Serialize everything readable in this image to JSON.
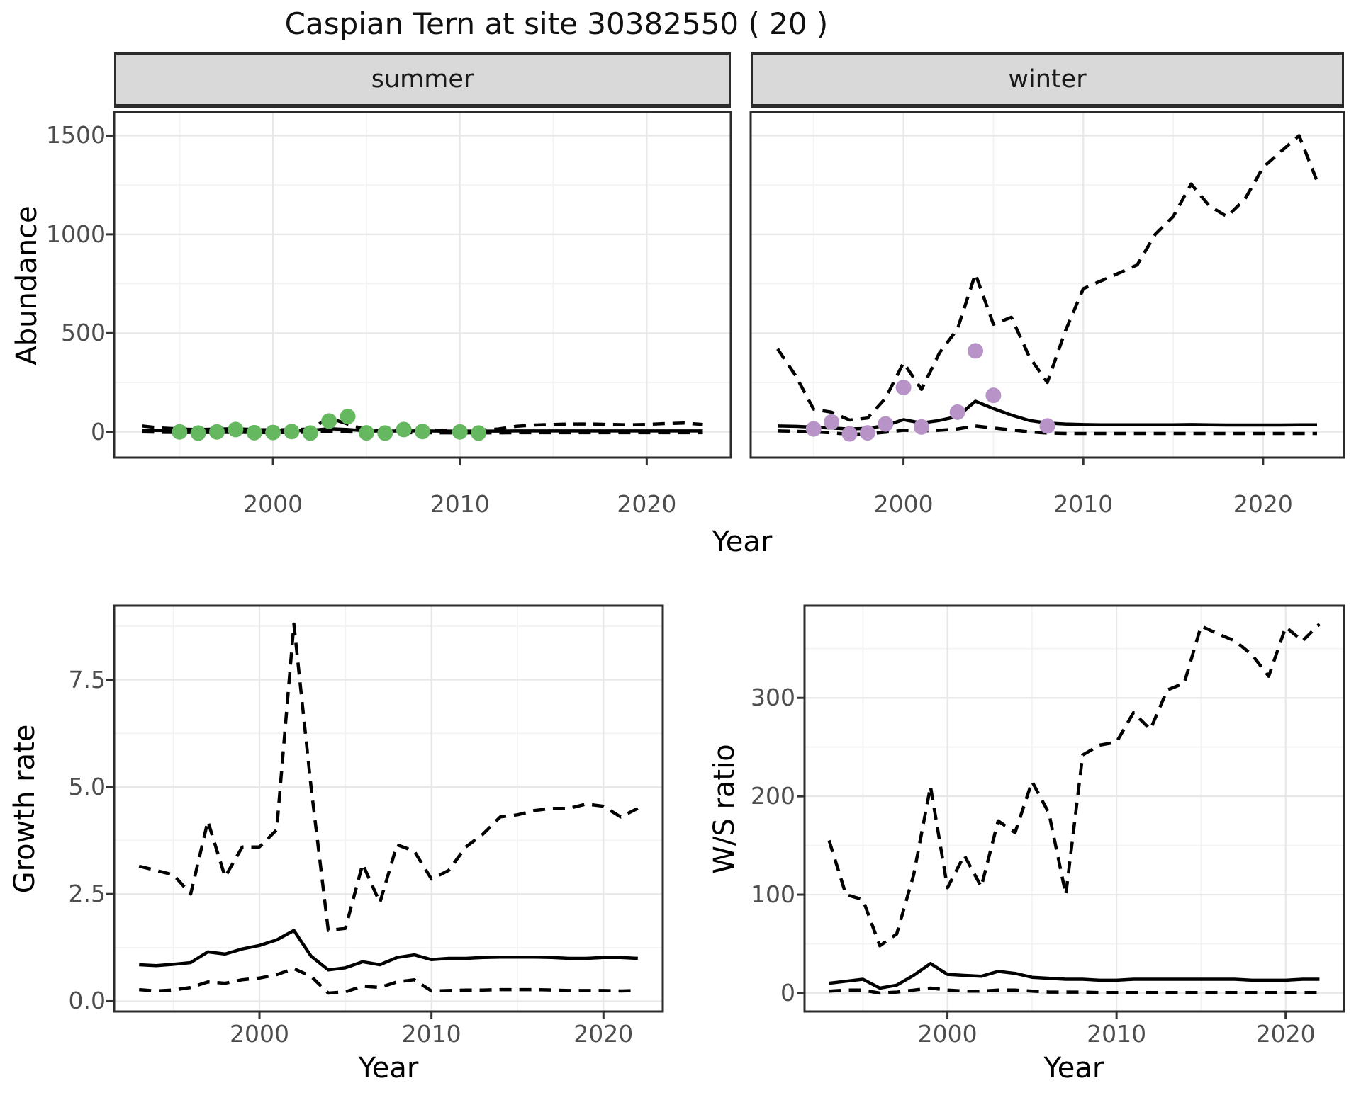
{
  "title": "Caspian Tern at site 30382550 ( 20 )",
  "colors": {
    "summer_points": "#65b85f",
    "winter_points": "#b793c8",
    "line": "#000000",
    "panel_border": "#2b2b2b",
    "grid_major": "#e8e8e8",
    "grid_minor": "#f3f3f3",
    "strip_bg": "#d9d9d9",
    "tick_text": "#4d4d4d"
  },
  "chart_data": [
    {
      "id": "abundance-summer",
      "type": "line",
      "facet": "summer",
      "xlabel": "Year",
      "ylabel": "Abundance",
      "xlim": [
        1991.5,
        2024.5
      ],
      "ylim": [
        -130,
        1620
      ],
      "xticks": [
        2000,
        2010,
        2020
      ],
      "xtick_labels": [
        "2000",
        "2010",
        "2020"
      ],
      "xminor": [
        1995,
        2005,
        2015
      ],
      "yticks": [
        0,
        500,
        1000,
        1500
      ],
      "ytick_labels": [
        "0",
        "500",
        "1000",
        "1500"
      ],
      "yminor": [
        250,
        750,
        1250
      ],
      "grid": true,
      "legend": "none",
      "series": [
        {
          "name": "upper-ci",
          "style": "dashed",
          "x": [
            1993,
            1994,
            1995,
            1996,
            1997,
            1998,
            1999,
            2000,
            2001,
            2002,
            2003,
            2004,
            2005,
            2006,
            2007,
            2008,
            2009,
            2010,
            2011,
            2012,
            2013,
            2014,
            2015,
            2016,
            2017,
            2018,
            2019,
            2020,
            2021,
            2022,
            2023
          ],
          "y": [
            30,
            20,
            15,
            12,
            14,
            16,
            12,
            10,
            12,
            14,
            70,
            40,
            10,
            8,
            10,
            12,
            8,
            8,
            8,
            14,
            28,
            35,
            38,
            40,
            40,
            38,
            36,
            38,
            42,
            45,
            38
          ]
        },
        {
          "name": "median",
          "style": "solid",
          "x": [
            1993,
            1994,
            1995,
            1996,
            1997,
            1998,
            1999,
            2000,
            2001,
            2002,
            2003,
            2004,
            2005,
            2006,
            2007,
            2008,
            2009,
            2010,
            2011,
            2012,
            2013,
            2014,
            2015,
            2016,
            2017,
            2018,
            2019,
            2020,
            2021,
            2022,
            2023
          ],
          "y": [
            8,
            7,
            6,
            6,
            6,
            7,
            6,
            5,
            6,
            7,
            16,
            12,
            5,
            4,
            5,
            5,
            4,
            4,
            4,
            4,
            5,
            5,
            5,
            5,
            5,
            5,
            5,
            5,
            5,
            5,
            5
          ]
        },
        {
          "name": "lower-ci",
          "style": "dashed",
          "x": [
            1993,
            1994,
            1995,
            1996,
            1997,
            1998,
            1999,
            2000,
            2001,
            2002,
            2003,
            2004,
            2005,
            2006,
            2007,
            2008,
            2009,
            2010,
            2011,
            2012,
            2013,
            2014,
            2015,
            2016,
            2017,
            2018,
            2019,
            2020,
            2021,
            2022,
            2023
          ],
          "y": [
            0,
            -2,
            -3,
            -3,
            -3,
            -2,
            -3,
            -4,
            -3,
            -2,
            2,
            0,
            -4,
            -5,
            -4,
            -4,
            -5,
            -5,
            -5,
            -5,
            -4,
            -4,
            -4,
            -4,
            -4,
            -4,
            -4,
            -4,
            -4,
            -4,
            -4
          ]
        },
        {
          "name": "observed-counts",
          "style": "points",
          "color": "#65b85f",
          "x": [
            1995,
            1996,
            1997,
            1998,
            1999,
            2000,
            2001,
            2002,
            2003,
            2004,
            2005,
            2006,
            2007,
            2008,
            2010,
            2011
          ],
          "y": [
            0,
            -6,
            0,
            12,
            -4,
            -3,
            2,
            -6,
            55,
            78,
            -5,
            -6,
            12,
            2,
            0,
            -6
          ]
        }
      ]
    },
    {
      "id": "abundance-winter",
      "type": "line",
      "facet": "winter",
      "xlabel": "Year",
      "ylabel": "Abundance",
      "xlim": [
        1991.5,
        2024.5
      ],
      "ylim": [
        -130,
        1620
      ],
      "xticks": [
        2000,
        2010,
        2020
      ],
      "xtick_labels": [
        "2000",
        "2010",
        "2020"
      ],
      "xminor": [
        1995,
        2005,
        2015
      ],
      "yticks": [
        0,
        500,
        1000,
        1500
      ],
      "ytick_labels": [
        "0",
        "500",
        "1000",
        "1500"
      ],
      "yminor": [
        250,
        750,
        1250
      ],
      "grid": true,
      "legend": "none",
      "series": [
        {
          "name": "upper-ci",
          "style": "dashed",
          "x": [
            1993,
            1994,
            1995,
            1996,
            1997,
            1998,
            1999,
            2000,
            2001,
            2002,
            2003,
            2004,
            2005,
            2006,
            2007,
            2008,
            2009,
            2010,
            2011,
            2012,
            2013,
            2014,
            2015,
            2016,
            2017,
            2018,
            2019,
            2020,
            2021,
            2022,
            2023
          ],
          "y": [
            420,
            285,
            115,
            100,
            60,
            70,
            170,
            350,
            215,
            400,
            520,
            800,
            545,
            580,
            380,
            250,
            510,
            725,
            765,
            805,
            845,
            1000,
            1090,
            1255,
            1145,
            1090,
            1180,
            1340,
            1420,
            1500,
            1270
          ]
        },
        {
          "name": "median",
          "style": "solid",
          "x": [
            1993,
            1994,
            1995,
            1996,
            1997,
            1998,
            1999,
            2000,
            2001,
            2002,
            2003,
            2004,
            2005,
            2006,
            2007,
            2008,
            2009,
            2010,
            2011,
            2012,
            2013,
            2014,
            2015,
            2016,
            2017,
            2018,
            2019,
            2020,
            2021,
            2022,
            2023
          ],
          "y": [
            30,
            28,
            24,
            20,
            15,
            18,
            32,
            62,
            45,
            58,
            78,
            155,
            118,
            85,
            58,
            45,
            40,
            37,
            36,
            36,
            36,
            36,
            36,
            37,
            36,
            35,
            35,
            35,
            35,
            36,
            36
          ]
        },
        {
          "name": "lower-ci",
          "style": "dashed",
          "x": [
            1993,
            1994,
            1995,
            1996,
            1997,
            1998,
            1999,
            2000,
            2001,
            2002,
            2003,
            2004,
            2005,
            2006,
            2007,
            2008,
            2009,
            2010,
            2011,
            2012,
            2013,
            2014,
            2015,
            2016,
            2017,
            2018,
            2019,
            2020,
            2021,
            2022,
            2023
          ],
          "y": [
            5,
            3,
            0,
            -5,
            -12,
            -10,
            -2,
            8,
            4,
            8,
            15,
            30,
            20,
            10,
            0,
            -6,
            -8,
            -8,
            -8,
            -8,
            -8,
            -8,
            -8,
            -8,
            -8,
            -8,
            -8,
            -8,
            -8,
            -8,
            -8
          ]
        },
        {
          "name": "observed-counts",
          "style": "points",
          "color": "#b793c8",
          "x": [
            1995,
            1996,
            1997,
            1998,
            1999,
            2000,
            2001,
            2003,
            2004,
            2005,
            2008
          ],
          "y": [
            15,
            50,
            -10,
            -5,
            40,
            225,
            25,
            100,
            410,
            185,
            30
          ]
        }
      ]
    },
    {
      "id": "growth-rate",
      "type": "line",
      "facet": "",
      "xlabel": "Year",
      "ylabel": "Growth rate",
      "xlim": [
        1991.55,
        2023.45
      ],
      "ylim": [
        -0.24,
        9.23
      ],
      "xticks": [
        2000,
        2010,
        2020
      ],
      "xtick_labels": [
        "2000",
        "2010",
        "2020"
      ],
      "xminor": [
        1995,
        2005,
        2015
      ],
      "yticks": [
        0.0,
        2.5,
        5.0,
        7.5
      ],
      "ytick_labels": [
        "0.0",
        "2.5",
        "5.0",
        "7.5"
      ],
      "yminor": [
        1.25,
        3.75,
        6.25,
        8.75
      ],
      "grid": true,
      "legend": "none",
      "series": [
        {
          "name": "upper-ci",
          "style": "dashed",
          "x": [
            1993,
            1994,
            1995,
            1996,
            1997,
            1998,
            1999,
            2000,
            2001,
            2002,
            2003,
            2004,
            2005,
            2006,
            2007,
            2008,
            2009,
            2010,
            2011,
            2012,
            2013,
            2014,
            2015,
            2016,
            2017,
            2018,
            2019,
            2020,
            2021,
            2022
          ],
          "y": [
            3.15,
            3.05,
            2.95,
            2.5,
            4.2,
            2.9,
            3.6,
            3.6,
            4.0,
            8.8,
            5.0,
            1.65,
            1.7,
            3.2,
            2.3,
            3.65,
            3.5,
            2.85,
            3.05,
            3.6,
            3.9,
            4.3,
            4.35,
            4.45,
            4.5,
            4.5,
            4.6,
            4.55,
            4.3,
            4.5
          ]
        },
        {
          "name": "median",
          "style": "solid",
          "x": [
            1993,
            1994,
            1995,
            1996,
            1997,
            1998,
            1999,
            2000,
            2001,
            2002,
            2003,
            2004,
            2005,
            2006,
            2007,
            2008,
            2009,
            2010,
            2011,
            2012,
            2013,
            2014,
            2015,
            2016,
            2017,
            2018,
            2019,
            2020,
            2021,
            2022
          ],
          "y": [
            0.85,
            0.83,
            0.86,
            0.9,
            1.15,
            1.1,
            1.22,
            1.3,
            1.43,
            1.65,
            1.05,
            0.73,
            0.78,
            0.92,
            0.85,
            1.02,
            1.08,
            0.97,
            1.0,
            1.0,
            1.02,
            1.03,
            1.03,
            1.03,
            1.02,
            1.0,
            1.0,
            1.02,
            1.02,
            1.0
          ]
        },
        {
          "name": "lower-ci",
          "style": "dashed",
          "x": [
            1993,
            1994,
            1995,
            1996,
            1997,
            1998,
            1999,
            2000,
            2001,
            2002,
            2003,
            2004,
            2005,
            2006,
            2007,
            2008,
            2009,
            2010,
            2011,
            2012,
            2013,
            2014,
            2015,
            2016,
            2017,
            2018,
            2019,
            2020,
            2021,
            2022
          ],
          "y": [
            0.27,
            0.24,
            0.26,
            0.32,
            0.45,
            0.42,
            0.5,
            0.54,
            0.62,
            0.76,
            0.58,
            0.19,
            0.22,
            0.35,
            0.32,
            0.45,
            0.5,
            0.24,
            0.25,
            0.26,
            0.26,
            0.27,
            0.27,
            0.27,
            0.26,
            0.25,
            0.25,
            0.25,
            0.24,
            0.25
          ]
        }
      ]
    },
    {
      "id": "ws-ratio",
      "type": "line",
      "facet": "",
      "xlabel": "Year",
      "ylabel": "W/S ratio",
      "xlim": [
        1991.55,
        2023.45
      ],
      "ylim": [
        -18.75,
        393.75
      ],
      "xticks": [
        2000,
        2010,
        2020
      ],
      "xtick_labels": [
        "2000",
        "2010",
        "2020"
      ],
      "xminor": [
        1995,
        2005,
        2015
      ],
      "yticks": [
        0,
        100,
        200,
        300
      ],
      "ytick_labels": [
        "0",
        "100",
        "200",
        "300"
      ],
      "yminor": [
        50,
        150,
        250,
        350
      ],
      "grid": true,
      "legend": "none",
      "series": [
        {
          "name": "upper-ci",
          "style": "dashed",
          "x": [
            1993,
            1994,
            1995,
            1996,
            1997,
            1998,
            1999,
            2000,
            2001,
            2002,
            2003,
            2004,
            2005,
            2006,
            2007,
            2008,
            2009,
            2010,
            2011,
            2012,
            2013,
            2014,
            2015,
            2016,
            2017,
            2018,
            2019,
            2020,
            2021,
            2022
          ],
          "y": [
            155,
            100,
            95,
            48,
            60,
            120,
            210,
            107,
            140,
            108,
            175,
            163,
            215,
            183,
            100,
            242,
            252,
            255,
            285,
            268,
            308,
            315,
            373,
            365,
            358,
            344,
            322,
            372,
            358,
            375
          ]
        },
        {
          "name": "median",
          "style": "solid",
          "x": [
            1993,
            1994,
            1995,
            1996,
            1997,
            1998,
            1999,
            2000,
            2001,
            2002,
            2003,
            2004,
            2005,
            2006,
            2007,
            2008,
            2009,
            2010,
            2011,
            2012,
            2013,
            2014,
            2015,
            2016,
            2017,
            2018,
            2019,
            2020,
            2021,
            2022
          ],
          "y": [
            10,
            12,
            14,
            5,
            8,
            18,
            30,
            19,
            18,
            17,
            22,
            20,
            16,
            15,
            14,
            14,
            13,
            13,
            14,
            14,
            14,
            14,
            14,
            14,
            14,
            13,
            13,
            13,
            14,
            14
          ]
        },
        {
          "name": "lower-ci",
          "style": "dashed",
          "x": [
            1993,
            1994,
            1995,
            1996,
            1997,
            1998,
            1999,
            2000,
            2001,
            2002,
            2003,
            2004,
            2005,
            2006,
            2007,
            2008,
            2009,
            2010,
            2011,
            2012,
            2013,
            2014,
            2015,
            2016,
            2017,
            2018,
            2019,
            2020,
            2021,
            2022
          ],
          "y": [
            2,
            3,
            3,
            0,
            1,
            3,
            5,
            3,
            2,
            2,
            3,
            3,
            2,
            1,
            1,
            1,
            0.5,
            0.5,
            0.5,
            0.5,
            0.5,
            0.5,
            0.5,
            0.5,
            0.5,
            0.5,
            0.5,
            0.5,
            0.5,
            0.5
          ]
        }
      ]
    }
  ]
}
